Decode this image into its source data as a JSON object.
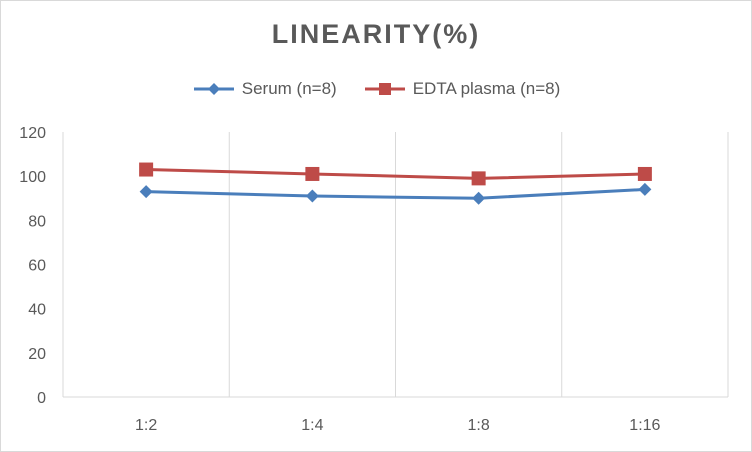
{
  "chart_data": {
    "type": "line",
    "title": "LINEARITY(%)",
    "categories": [
      "1:2",
      "1:4",
      "1:8",
      "1:16"
    ],
    "series": [
      {
        "name": "Serum (n=8)",
        "values": [
          93,
          91,
          90,
          94
        ],
        "color": "#4a7ebb",
        "marker": "diamond"
      },
      {
        "name": "EDTA plasma (n=8)",
        "values": [
          103,
          101,
          99,
          101
        ],
        "color": "#be4b48",
        "marker": "square"
      }
    ],
    "ylim": [
      0,
      120
    ],
    "yticks": [
      "0",
      "20",
      "40",
      "60",
      "80",
      "100",
      "120"
    ],
    "grid": "vertical",
    "legend_position": "top"
  }
}
